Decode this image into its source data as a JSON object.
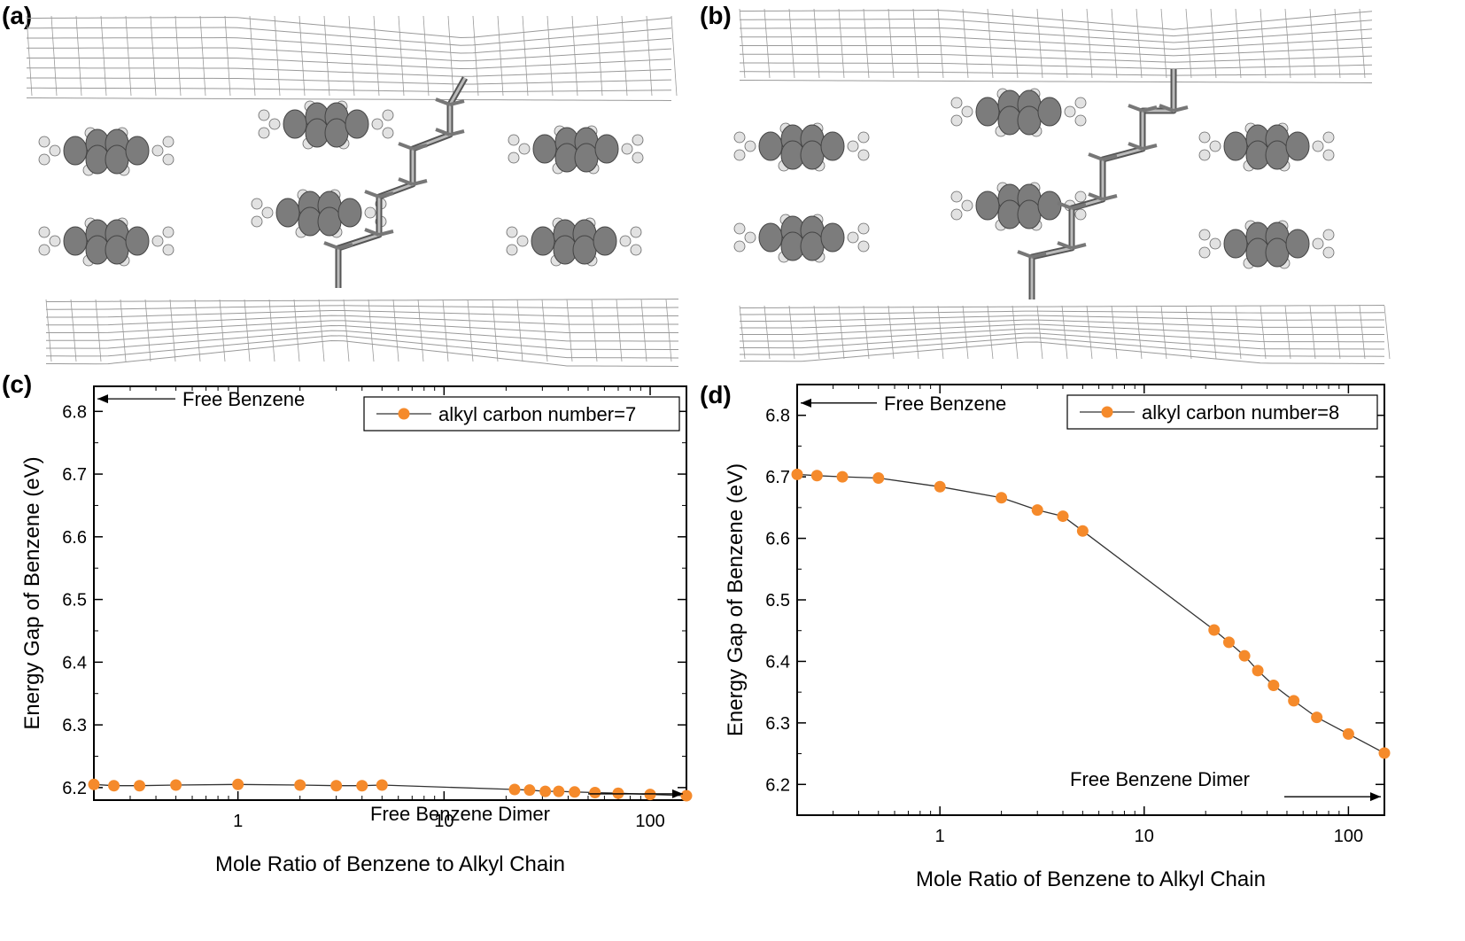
{
  "panels": {
    "a": "(a)",
    "b": "(b)",
    "c": "(c)",
    "d": "(d)"
  },
  "colors": {
    "marker": "#f58a2b",
    "line": "#333333",
    "sheet": "#9a9a9a",
    "atom_dark": "#7c7c7c",
    "atom_light": "#e2e2e2"
  },
  "chart_data": [
    {
      "type": "scatter",
      "panel": "c",
      "xlabel": "Mole Ratio of Benzene to Alkyl Chain",
      "ylabel": "Energy Gap of Benzene (eV)",
      "xscale": "log",
      "xlim": [
        0.2,
        150
      ],
      "ylim": [
        6.18,
        6.84
      ],
      "xticks": [
        1,
        10,
        100
      ],
      "xtick_labels": [
        "1",
        "10",
        "100"
      ],
      "yticks": [
        6.2,
        6.3,
        6.4,
        6.5,
        6.6,
        6.7,
        6.8
      ],
      "ytick_labels": [
        "6.2",
        "6.3",
        "6.4",
        "6.5",
        "6.6",
        "6.7",
        "6.8"
      ],
      "legend_position": "top-right",
      "series": [
        {
          "name": "alkyl carbon number=7",
          "x": [
            0.2,
            0.25,
            0.333,
            0.5,
            1,
            2,
            3,
            4,
            5,
            22,
            26,
            31,
            36,
            43,
            54,
            70,
            100,
            150
          ],
          "y": [
            6.205,
            6.203,
            6.203,
            6.204,
            6.205,
            6.204,
            6.203,
            6.203,
            6.204,
            6.197,
            6.196,
            6.194,
            6.194,
            6.193,
            6.192,
            6.191,
            6.189,
            6.187
          ]
        }
      ],
      "annotations": [
        {
          "text": "Free Benzene",
          "arrow": "left",
          "y": 6.82
        },
        {
          "text": "Free Benzene Dimer",
          "arrow": "right",
          "y": 6.19
        }
      ]
    },
    {
      "type": "scatter",
      "panel": "d",
      "xlabel": "Mole Ratio of Benzene to Alkyl Chain",
      "ylabel": "Energy Gap of Benzene (eV)",
      "xscale": "log",
      "xlim": [
        0.2,
        150
      ],
      "ylim": [
        6.15,
        6.85
      ],
      "xticks": [
        1,
        10,
        100
      ],
      "xtick_labels": [
        "1",
        "10",
        "100"
      ],
      "yticks": [
        6.2,
        6.3,
        6.4,
        6.5,
        6.6,
        6.7,
        6.8
      ],
      "ytick_labels": [
        "6.2",
        "6.3",
        "6.4",
        "6.5",
        "6.6",
        "6.7",
        "6.8"
      ],
      "legend_position": "top-right",
      "series": [
        {
          "name": "alkyl carbon number=8",
          "x": [
            0.2,
            0.25,
            0.333,
            0.5,
            1,
            2,
            3,
            4,
            5,
            22,
            26,
            31,
            36,
            43,
            54,
            70,
            100,
            150
          ],
          "y": [
            6.704,
            6.702,
            6.7,
            6.698,
            6.684,
            6.666,
            6.646,
            6.636,
            6.612,
            6.451,
            6.431,
            6.409,
            6.385,
            6.361,
            6.336,
            6.309,
            6.282,
            6.251
          ]
        }
      ],
      "annotations": [
        {
          "text": "Free Benzene",
          "arrow": "left",
          "y": 6.82
        },
        {
          "text": "Free Benzene Dimer",
          "arrow": "right",
          "y": 6.18
        }
      ]
    }
  ]
}
